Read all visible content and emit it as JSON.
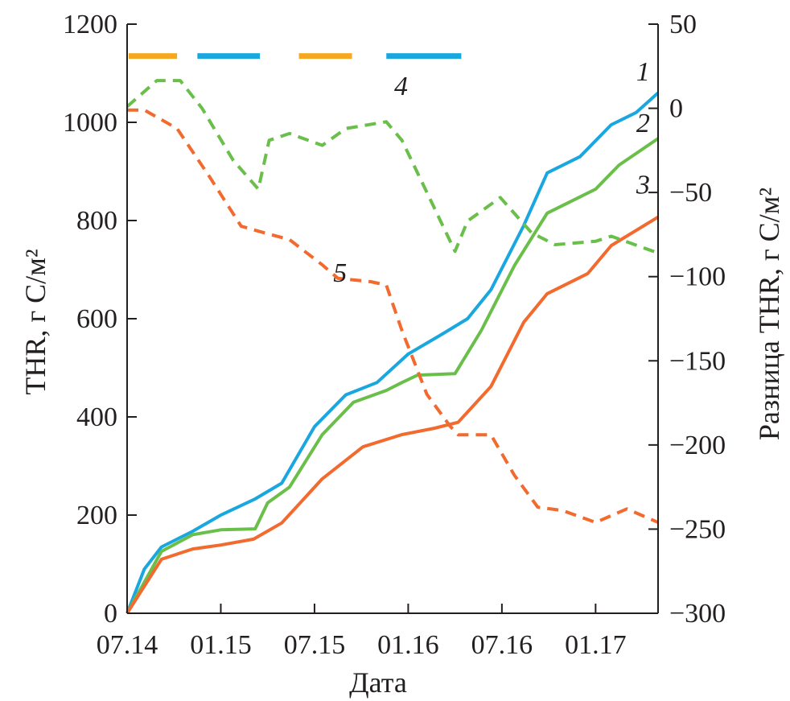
{
  "chart_data": {
    "type": "line",
    "xlabel": "Дата",
    "ylabel": "THR, г C/м²",
    "ylabel_right": "Разница THR, г C/м²",
    "x_unit": "months since 07.14",
    "xlim": [
      0,
      34
    ],
    "ylim": [
      0,
      1200
    ],
    "ylim_right": [
      -300,
      50
    ],
    "x_ticks": [
      {
        "v": 0,
        "label": "07.14"
      },
      {
        "v": 6,
        "label": "01.15"
      },
      {
        "v": 12,
        "label": "07.15"
      },
      {
        "v": 18,
        "label": "01.16"
      },
      {
        "v": 24,
        "label": "07.16"
      },
      {
        "v": 30,
        "label": "01.17"
      }
    ],
    "y_ticks": [
      {
        "v": 0,
        "label": "0"
      },
      {
        "v": 200,
        "label": "200"
      },
      {
        "v": 400,
        "label": "400"
      },
      {
        "v": 600,
        "label": "600"
      },
      {
        "v": 800,
        "label": "800"
      },
      {
        "v": 1000,
        "label": "1000"
      },
      {
        "v": 1200,
        "label": "1200"
      }
    ],
    "y_ticks_right": [
      {
        "v": 50,
        "label": "50"
      },
      {
        "v": 0,
        "label": "0"
      },
      {
        "v": -50,
        "label": "−50"
      },
      {
        "v": -100,
        "label": "−100"
      },
      {
        "v": -150,
        "label": "−150"
      },
      {
        "v": -200,
        "label": "−200"
      },
      {
        "v": -250,
        "label": "−250"
      },
      {
        "v": -300,
        "label": "−300"
      }
    ],
    "grid": false,
    "series": [
      {
        "name": "1",
        "axis": "left",
        "color": "#1aa7e0",
        "dash": false,
        "label_at": [
          32.6,
          1085
        ],
        "x": [
          0,
          1.1,
          2.2,
          4.2,
          6,
          8.2,
          9.9,
          12,
          14,
          16,
          18,
          20.2,
          21.8,
          23.3,
          25.4,
          26.9,
          29,
          31,
          32.6,
          34
        ],
        "y": [
          0,
          90,
          135,
          167,
          200,
          233,
          265,
          380,
          445,
          470,
          528,
          569,
          600,
          659,
          790,
          897,
          930,
          995,
          1020,
          1060
        ]
      },
      {
        "name": "2",
        "axis": "left",
        "color": "#6abf4b",
        "dash": false,
        "label_at": [
          32.6,
          980
        ],
        "x": [
          0,
          2.2,
          4.2,
          6,
          8.2,
          9,
          10.4,
          12.5,
          14.5,
          16.6,
          17.6,
          18.6,
          21,
          22.7,
          24.8,
          26.9,
          29,
          30,
          31.5,
          34
        ],
        "y": [
          0,
          126,
          160,
          170,
          172,
          225,
          257,
          364,
          430,
          454,
          470,
          485,
          488,
          577,
          708,
          815,
          848,
          864,
          913,
          967
        ]
      },
      {
        "name": "3",
        "axis": "left",
        "color": "#f26a2e",
        "dash": false,
        "label_at": [
          32.6,
          855
        ],
        "x": [
          0,
          2.2,
          4.2,
          6,
          8.1,
          9.9,
          12.5,
          15.1,
          17.6,
          19.7,
          21.2,
          23.3,
          25.4,
          26.9,
          29.5,
          31,
          34
        ],
        "y": [
          0,
          110,
          131,
          139,
          151,
          184,
          274,
          339,
          364,
          377,
          389,
          462,
          593,
          651,
          692,
          749,
          807
        ]
      },
      {
        "name": "4",
        "axis": "right",
        "color": "#6abf4b",
        "dash": true,
        "label_at": [
          17.1,
          8
        ],
        "x": [
          0,
          1.9,
          3.4,
          4.8,
          6.8,
          8.4,
          9.1,
          10.4,
          12.5,
          14,
          16.6,
          17.6,
          19.2,
          21,
          21.8,
          23.9,
          25.9,
          27.4,
          30,
          31,
          34
        ],
        "y": [
          1,
          16.5,
          16.5,
          0,
          -31,
          -48,
          -19,
          -15,
          -22,
          -12,
          -8,
          -19,
          -50,
          -85,
          -67,
          -53,
          -74,
          -81,
          -79,
          -76,
          -86
        ]
      },
      {
        "name": "5",
        "axis": "right",
        "color": "#f26a2e",
        "dash": true,
        "label_at": [
          13.2,
          -103
        ],
        "x": [
          0,
          1.1,
          3.2,
          5.3,
          7.3,
          8.4,
          10.4,
          12.5,
          13.5,
          15.6,
          16.6,
          17.6,
          19.2,
          20.7,
          21.2,
          23.3,
          24.8,
          26.3,
          27.9,
          30,
          32,
          34
        ],
        "y": [
          -1,
          -1,
          -12,
          -41,
          -70,
          -73,
          -78,
          -93,
          -101,
          -103,
          -105,
          -132,
          -170,
          -189,
          -194,
          -194,
          -218,
          -237,
          -239,
          -246,
          -238,
          -246
        ]
      }
    ],
    "season_bars": [
      {
        "from": 0.1,
        "to": 3.2,
        "color": "#f7a823"
      },
      {
        "from": 4.5,
        "to": 8.5,
        "color": "#1aa7e0"
      },
      {
        "from": 11.0,
        "to": 14.4,
        "color": "#f7a823"
      },
      {
        "from": 16.6,
        "to": 21.4,
        "color": "#1aa7e0"
      }
    ],
    "season_bar_level": 1135
  }
}
